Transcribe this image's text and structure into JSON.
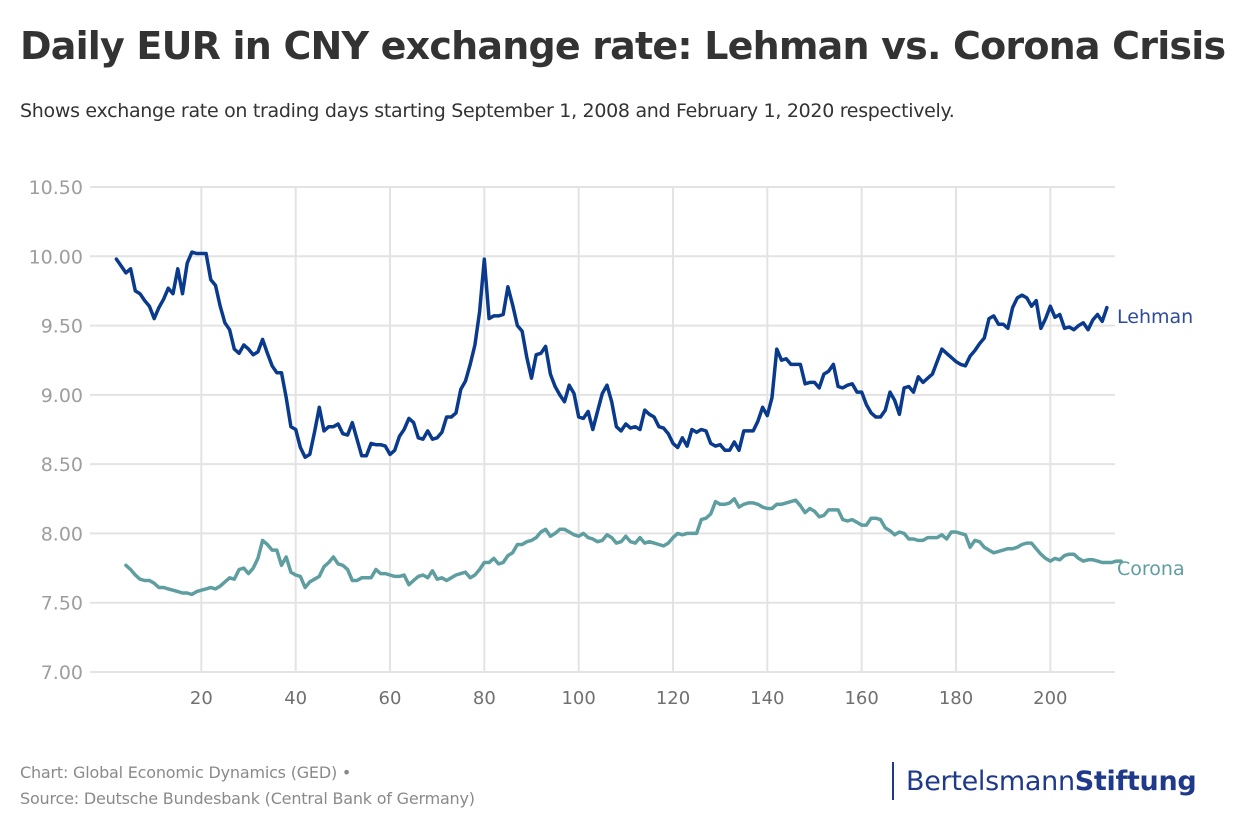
{
  "header": {
    "title": "Daily EUR in CNY exchange rate: Lehman vs. Corona Crisis",
    "subtitle": "Shows exchange rate on trading days starting September 1, 2008 and February 1, 2020 respectively."
  },
  "footer": {
    "credit": "Chart: Global Economic Dynamics (GED) •",
    "source": "Source: Deutsche Bundesbank (Central Bank of Germany)",
    "logo_regular": "Bertelsmann",
    "logo_bold": "Stiftung"
  },
  "colors": {
    "lehman": "#0a3a8c",
    "corona": "#5f9ea0",
    "grid": "#e3e3e3",
    "logo": "#1f3a8a"
  },
  "chart_data": {
    "type": "line",
    "title": "Daily EUR in CNY exchange rate: Lehman vs. Corona Crisis",
    "subtitle": "Shows exchange rate on trading days starting September 1, 2008 and February 1, 2020 respectively.",
    "xlabel": "",
    "ylabel": "",
    "xlim": [
      0,
      215
    ],
    "ylim": [
      7.0,
      10.5
    ],
    "x_ticks": [
      20,
      40,
      60,
      80,
      100,
      120,
      140,
      160,
      180,
      200
    ],
    "y_ticks": [
      7.0,
      7.5,
      8.0,
      8.5,
      9.0,
      9.5,
      10.0,
      10.5
    ],
    "y_tick_labels": [
      "7.00",
      "7.50",
      "8.00",
      "8.50",
      "9.00",
      "9.50",
      "10.00",
      "10.50"
    ],
    "grid": true,
    "legend": "direct labels at line ends (right)",
    "series": [
      {
        "name": "Lehman",
        "x_start": 2,
        "values": [
          9.98,
          9.93,
          9.88,
          9.91,
          9.75,
          9.73,
          9.68,
          9.64,
          9.55,
          9.63,
          9.69,
          9.77,
          9.73,
          9.91,
          9.73,
          9.95,
          10.03,
          10.02,
          10.02,
          10.02,
          9.83,
          9.79,
          9.64,
          9.52,
          9.47,
          9.33,
          9.3,
          9.36,
          9.33,
          9.29,
          9.31,
          9.4,
          9.3,
          9.21,
          9.16,
          9.16,
          8.98,
          8.77,
          8.75,
          8.62,
          8.55,
          8.57,
          8.73,
          8.91,
          8.74,
          8.77,
          8.77,
          8.79,
          8.72,
          8.71,
          8.8,
          8.68,
          8.56,
          8.56,
          8.65,
          8.64,
          8.64,
          8.63,
          8.57,
          8.6,
          8.7,
          8.75,
          8.83,
          8.8,
          8.69,
          8.68,
          8.74,
          8.68,
          8.69,
          8.73,
          8.84,
          8.84,
          8.87,
          9.04,
          9.1,
          9.22,
          9.36,
          9.6,
          9.98,
          9.55,
          9.57,
          9.57,
          9.58,
          9.78,
          9.65,
          9.5,
          9.46,
          9.27,
          9.12,
          9.29,
          9.3,
          9.35,
          9.15,
          9.06,
          9.0,
          8.95,
          9.07,
          9.01,
          8.84,
          8.83,
          8.88,
          8.75,
          8.88,
          9.01,
          9.07,
          8.95,
          8.77,
          8.74,
          8.79,
          8.76,
          8.77,
          8.75,
          8.89,
          8.86,
          8.84,
          8.77,
          8.76,
          8.72,
          8.65,
          8.62,
          8.69,
          8.63,
          8.75,
          8.73,
          8.75,
          8.74,
          8.65,
          8.63,
          8.64,
          8.6,
          8.6,
          8.66,
          8.6,
          8.74,
          8.74,
          8.74,
          8.81,
          8.91,
          8.85,
          8.98,
          9.33,
          9.25,
          9.26,
          9.22,
          9.22,
          9.22,
          9.08,
          9.09,
          9.09,
          9.05,
          9.15,
          9.17,
          9.22,
          9.06,
          9.05,
          9.07,
          9.08,
          9.02,
          9.02,
          8.93,
          8.87,
          8.84,
          8.84,
          8.89,
          9.02,
          8.96,
          8.86,
          9.05,
          9.06,
          9.02,
          9.13,
          9.09,
          9.12,
          9.15,
          9.24,
          9.33,
          9.3,
          9.27,
          9.24,
          9.22,
          9.21,
          9.28,
          9.32,
          9.37,
          9.41,
          9.55,
          9.57,
          9.51,
          9.51,
          9.48,
          9.63,
          9.7,
          9.72,
          9.7,
          9.64,
          9.68,
          9.48,
          9.55,
          9.64,
          9.56,
          9.58,
          9.48,
          9.49,
          9.47,
          9.5,
          9.52,
          9.47,
          9.54,
          9.58,
          9.53,
          9.63
        ]
      },
      {
        "name": "Corona",
        "x_start": 4,
        "values": [
          7.77,
          7.74,
          7.7,
          7.67,
          7.66,
          7.66,
          7.64,
          7.61,
          7.61,
          7.6,
          7.59,
          7.58,
          7.57,
          7.57,
          7.56,
          7.58,
          7.59,
          7.6,
          7.61,
          7.6,
          7.62,
          7.65,
          7.68,
          7.67,
          7.74,
          7.75,
          7.71,
          7.75,
          7.82,
          7.95,
          7.92,
          7.88,
          7.88,
          7.77,
          7.83,
          7.72,
          7.7,
          7.69,
          7.61,
          7.65,
          7.67,
          7.69,
          7.76,
          7.79,
          7.83,
          7.78,
          7.77,
          7.74,
          7.66,
          7.66,
          7.68,
          7.68,
          7.68,
          7.74,
          7.71,
          7.71,
          7.7,
          7.69,
          7.69,
          7.7,
          7.63,
          7.66,
          7.69,
          7.7,
          7.68,
          7.73,
          7.67,
          7.68,
          7.66,
          7.68,
          7.7,
          7.71,
          7.72,
          7.68,
          7.7,
          7.74,
          7.79,
          7.79,
          7.82,
          7.78,
          7.79,
          7.84,
          7.86,
          7.92,
          7.92,
          7.94,
          7.95,
          7.97,
          8.01,
          8.03,
          7.98,
          8.0,
          8.03,
          8.03,
          8.01,
          7.99,
          7.98,
          8.0,
          7.97,
          7.96,
          7.94,
          7.95,
          7.99,
          7.97,
          7.93,
          7.94,
          7.98,
          7.94,
          7.93,
          7.97,
          7.93,
          7.94,
          7.93,
          7.92,
          7.91,
          7.93,
          7.97,
          8.0,
          7.99,
          8.0,
          8.0,
          8.0,
          8.1,
          8.11,
          8.14,
          8.23,
          8.21,
          8.21,
          8.22,
          8.25,
          8.19,
          8.21,
          8.22,
          8.22,
          8.21,
          8.19,
          8.18,
          8.18,
          8.21,
          8.21,
          8.22,
          8.23,
          8.24,
          8.2,
          8.15,
          8.18,
          8.16,
          8.12,
          8.13,
          8.17,
          8.17,
          8.17,
          8.1,
          8.09,
          8.1,
          8.08,
          8.06,
          8.06,
          8.11,
          8.11,
          8.1,
          8.04,
          8.02,
          7.99,
          8.01,
          8.0,
          7.96,
          7.96,
          7.95,
          7.95,
          7.97,
          7.97,
          7.97,
          7.99,
          7.96,
          8.01,
          8.01,
          8.0,
          7.99,
          7.9,
          7.95,
          7.94,
          7.9,
          7.88,
          7.86,
          7.87,
          7.88,
          7.89,
          7.89,
          7.9,
          7.92,
          7.93,
          7.93,
          7.89,
          7.85,
          7.82,
          7.8,
          7.82,
          7.81,
          7.84,
          7.85,
          7.85,
          7.82,
          7.8,
          7.81,
          7.81,
          7.8,
          7.79,
          7.79,
          7.79,
          7.8,
          7.8
        ]
      }
    ]
  }
}
